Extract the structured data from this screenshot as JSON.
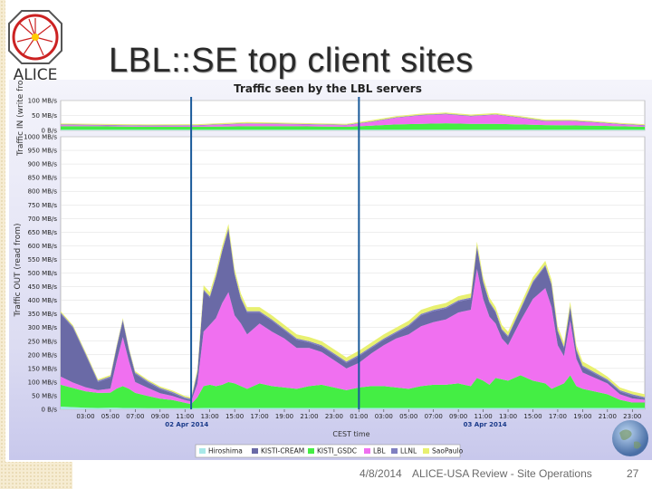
{
  "slide": {
    "title": "LBL::SE top client sites",
    "logo_text": "ALICE",
    "footer_date": "4/8/2014",
    "footer_text": "ALICE-USA Review - Site Operations",
    "page_number": "27"
  },
  "colors": {
    "Hiroshima": "#a8e8e8",
    "KISTI-CREAM": "#6a6aa6",
    "KISTI_GSDC": "#44ee44",
    "LBL": "#f070f0",
    "LLNL": "#8080c0",
    "SaoPaulo": "#e8f070"
  },
  "chart_data": {
    "type": "area",
    "title": "Traffic seen by the LBL servers",
    "xlabel": "CEST time",
    "top_panel": {
      "ylabel": "Traffic IN (write fro",
      "ylim": [
        0,
        100
      ],
      "yticks": [
        "100 MB/s",
        "50 MB/s",
        "0 B/s"
      ]
    },
    "bottom_panel": {
      "ylabel": "Traffic OUT (read from)",
      "ylim": [
        0,
        1000
      ],
      "yticks": [
        "1000 MB/s",
        "950 MB/s",
        "900 MB/s",
        "850 MB/s",
        "800 MB/s",
        "750 MB/s",
        "700 MB/s",
        "650 MB/s",
        "600 MB/s",
        "550 MB/s",
        "500 MB/s",
        "450 MB/s",
        "400 MB/s",
        "350 MB/s",
        "300 MB/s",
        "250 MB/s",
        "200 MB/s",
        "150 MB/s",
        "100 MB/s",
        "50 MB/s",
        "0 B/s"
      ]
    },
    "x_ticks": [
      "03:00",
      "05:00",
      "07:00",
      "09:00",
      "11:00",
      "13:00",
      "15:00",
      "17:00",
      "19:00",
      "21:00",
      "23:00",
      "01:00",
      "03:00",
      "05:00",
      "07:00",
      "09:00",
      "11:00",
      "13:00",
      "15:00",
      "17:00",
      "19:00",
      "21:00",
      "23:00"
    ],
    "date_labels": [
      {
        "label": "02 Apr 2014",
        "at_hour": 11
      },
      {
        "label": "03 Apr 2014",
        "at_hour": 35
      }
    ],
    "x_range_hours": [
      1,
      48
    ],
    "markers_hours": [
      11.5,
      25
    ],
    "legend": [
      "Hiroshima",
      "KISTI-CREAM",
      "KISTI_GSDC",
      "LBL",
      "LLNL",
      "SaoPaulo"
    ],
    "out_series": {
      "x": [
        1,
        2,
        3,
        4,
        5,
        5.5,
        6,
        6.5,
        7,
        8,
        9,
        10,
        11,
        11.5,
        12,
        12.5,
        13,
        13.5,
        14,
        14.5,
        15,
        15.5,
        16,
        17,
        18,
        19,
        20,
        21,
        22,
        23,
        24,
        25,
        26,
        27,
        28,
        29,
        30,
        31,
        32,
        33,
        34,
        34.5,
        35,
        35.5,
        36,
        36.5,
        37,
        38,
        39,
        40,
        40.5,
        41,
        41.5,
        42,
        42.5,
        43,
        44,
        45,
        46,
        47,
        48
      ],
      "Hiroshima": [
        10,
        8,
        6,
        5,
        6,
        6,
        5,
        5,
        5,
        4,
        4,
        4,
        4,
        4,
        4,
        5,
        5,
        5,
        5,
        5,
        5,
        5,
        5,
        5,
        5,
        5,
        5,
        5,
        5,
        5,
        5,
        5,
        5,
        5,
        5,
        5,
        5,
        5,
        5,
        5,
        5,
        5,
        5,
        5,
        5,
        5,
        5,
        5,
        5,
        5,
        5,
        5,
        5,
        5,
        5,
        5,
        5,
        5,
        5,
        5,
        5
      ],
      "KISTI_GSDC": [
        80,
        70,
        60,
        55,
        55,
        70,
        80,
        70,
        55,
        45,
        35,
        30,
        20,
        15,
        40,
        80,
        85,
        80,
        85,
        95,
        90,
        80,
        70,
        90,
        80,
        75,
        70,
        80,
        85,
        75,
        65,
        75,
        80,
        80,
        75,
        70,
        80,
        85,
        85,
        90,
        80,
        110,
        100,
        85,
        110,
        105,
        100,
        120,
        100,
        90,
        70,
        80,
        90,
        120,
        80,
        70,
        60,
        50,
        30,
        20,
        20
      ],
      "LBL": [
        30,
        20,
        15,
        10,
        15,
        100,
        180,
        100,
        40,
        30,
        20,
        15,
        10,
        10,
        50,
        200,
        220,
        250,
        300,
        330,
        250,
        230,
        200,
        220,
        200,
        180,
        150,
        140,
        120,
        100,
        80,
        90,
        120,
        150,
        180,
        200,
        220,
        230,
        240,
        260,
        280,
        400,
        300,
        250,
        200,
        150,
        130,
        200,
        300,
        350,
        300,
        150,
        100,
        200,
        100,
        60,
        50,
        40,
        20,
        15,
        10
      ],
      "KISTI-CREAM": [
        230,
        200,
        120,
        30,
        40,
        50,
        60,
        40,
        30,
        20,
        15,
        10,
        5,
        5,
        40,
        150,
        100,
        150,
        190,
        230,
        150,
        90,
        80,
        40,
        40,
        30,
        30,
        20,
        20,
        20,
        20,
        25,
        20,
        20,
        20,
        30,
        40,
        40,
        40,
        40,
        40,
        80,
        60,
        50,
        40,
        30,
        30,
        40,
        60,
        80,
        80,
        50,
        30,
        50,
        30,
        20,
        15,
        10,
        10,
        10,
        5
      ],
      "LLNL": [
        5,
        5,
        5,
        5,
        5,
        5,
        5,
        5,
        5,
        5,
        5,
        5,
        5,
        5,
        5,
        5,
        5,
        5,
        5,
        5,
        5,
        5,
        5,
        5,
        5,
        5,
        5,
        5,
        5,
        5,
        5,
        5,
        5,
        5,
        5,
        5,
        5,
        5,
        5,
        5,
        5,
        5,
        5,
        5,
        5,
        5,
        5,
        5,
        5,
        5,
        5,
        5,
        5,
        5,
        5,
        5,
        5,
        5,
        5,
        5,
        5
      ],
      "SaoPaulo": [
        5,
        5,
        5,
        5,
        5,
        5,
        5,
        5,
        5,
        5,
        5,
        5,
        5,
        5,
        10,
        15,
        15,
        15,
        15,
        15,
        15,
        15,
        15,
        15,
        15,
        15,
        15,
        15,
        15,
        15,
        15,
        15,
        15,
        15,
        15,
        15,
        15,
        15,
        15,
        15,
        15,
        15,
        15,
        15,
        15,
        15,
        15,
        15,
        15,
        15,
        15,
        15,
        15,
        15,
        15,
        15,
        15,
        10,
        10,
        10,
        10
      ]
    },
    "in_series": {
      "x": [
        1,
        4,
        8,
        12,
        16,
        20,
        24,
        26,
        28,
        30,
        32,
        34,
        36,
        38,
        40,
        42,
        44,
        46,
        48
      ],
      "Hiroshima": [
        2,
        2,
        2,
        2,
        2,
        2,
        2,
        2,
        2,
        2,
        2,
        2,
        2,
        2,
        2,
        2,
        2,
        2,
        2
      ],
      "KISTI_GSDC": [
        12,
        12,
        10,
        10,
        12,
        12,
        10,
        14,
        18,
        20,
        22,
        20,
        20,
        18,
        16,
        15,
        14,
        12,
        10
      ],
      "LBL": [
        4,
        3,
        3,
        4,
        8,
        6,
        5,
        12,
        22,
        28,
        30,
        25,
        30,
        22,
        12,
        14,
        10,
        6,
        4
      ],
      "LLNL": [
        2,
        2,
        2,
        2,
        2,
        2,
        2,
        2,
        2,
        2,
        2,
        2,
        2,
        2,
        2,
        2,
        2,
        2,
        2
      ],
      "SaoPaulo": [
        3,
        3,
        3,
        3,
        4,
        3,
        3,
        4,
        4,
        4,
        4,
        4,
        4,
        4,
        4,
        3,
        3,
        3,
        3
      ]
    }
  }
}
